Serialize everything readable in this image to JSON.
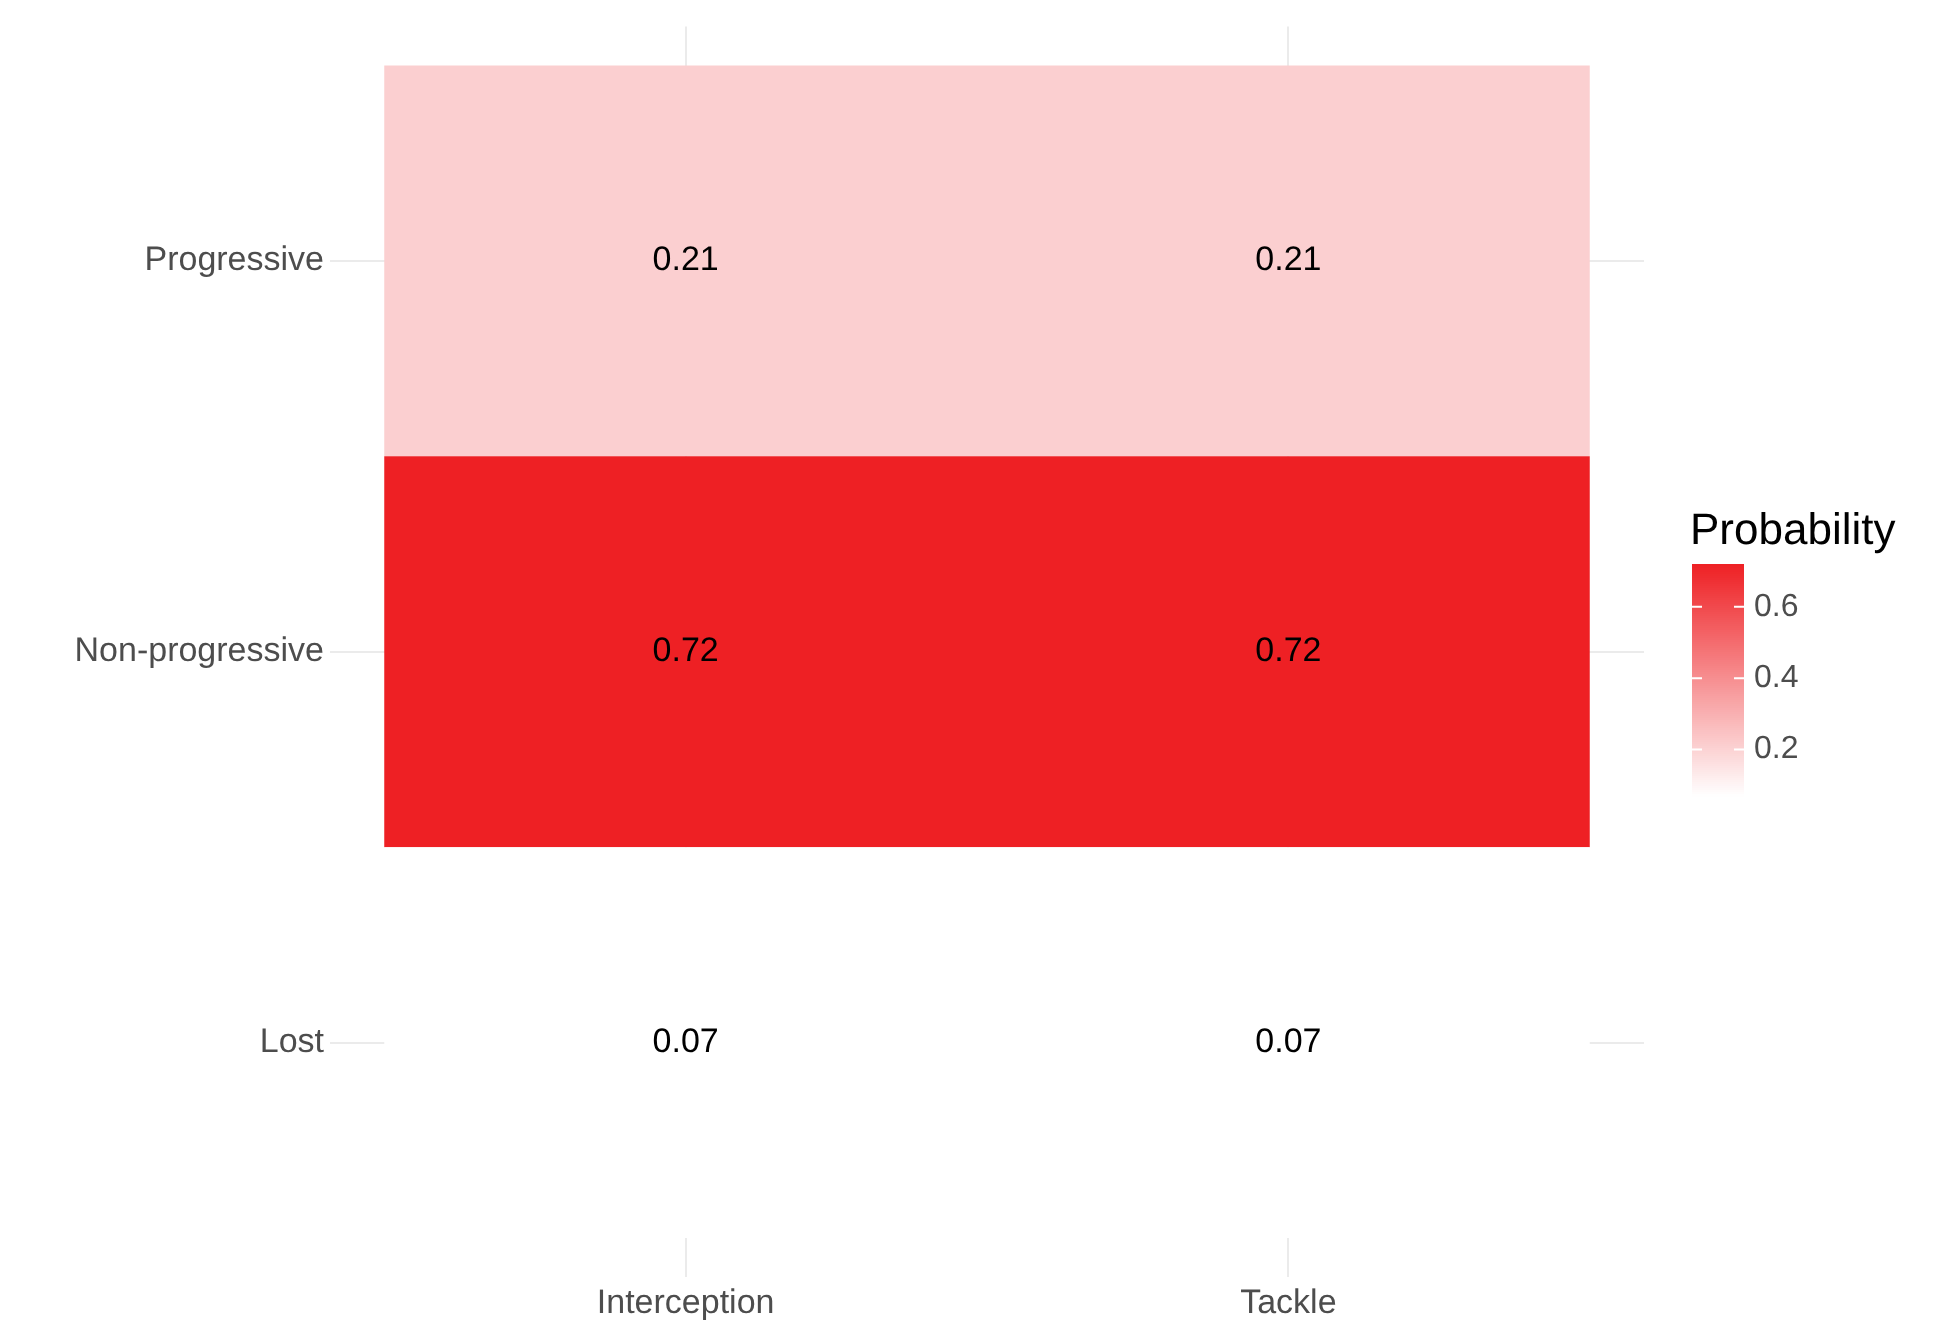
{
  "chart_data": {
    "type": "heatmap",
    "categories": [
      "Interception",
      "Tackle"
    ],
    "y_categories": [
      "Progressive",
      "Non-progressive",
      "Lost"
    ],
    "cells": [
      [
        0.21,
        0.21
      ],
      [
        0.72,
        0.72
      ],
      [
        0.07,
        0.07
      ]
    ],
    "clabel": "Probability",
    "clim": [
      0.07,
      0.72
    ],
    "cticks": [
      0.2,
      0.4,
      0.6
    ],
    "data_labels": true,
    "grid": true
  }
}
